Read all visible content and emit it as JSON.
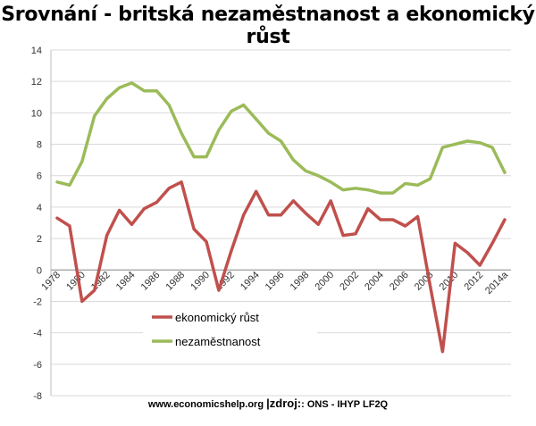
{
  "chart_data": {
    "type": "line",
    "title": "Srovnání - britská nezaměstnanost a ekonomický růst",
    "xlabel": "",
    "ylabel": "",
    "ylim": [
      -8,
      14
    ],
    "yticks": [
      14,
      12,
      10,
      8,
      6,
      4,
      2,
      0,
      -2,
      -4,
      -6,
      -8
    ],
    "x": [
      "1978",
      "1979",
      "1980",
      "1981",
      "1982",
      "1983",
      "1984",
      "1985",
      "1986",
      "1987",
      "1988",
      "1989",
      "1990",
      "1991",
      "1992",
      "1993",
      "1994",
      "1995",
      "1996",
      "1997",
      "1998",
      "1999",
      "2000",
      "2001",
      "2002",
      "2003",
      "2004",
      "2005",
      "2006",
      "2007",
      "2008",
      "2009",
      "2010",
      "2011",
      "2012",
      "2013",
      "2014a"
    ],
    "xtick_labels": [
      "1978",
      "1980",
      "1982",
      "1984",
      "1986",
      "1988",
      "1990",
      "1992",
      "1994",
      "1996",
      "1998",
      "2000",
      "2002",
      "2004",
      "2006",
      "2008",
      "2010",
      "2012",
      "2014a"
    ],
    "grid": true,
    "legend_position": "lower-left",
    "series": [
      {
        "name": "ekonomický růst",
        "color": "#c0504d",
        "values": [
          3.3,
          2.8,
          -2.0,
          -1.3,
          2.2,
          3.8,
          2.9,
          3.9,
          4.3,
          5.2,
          5.6,
          2.6,
          1.8,
          -1.3,
          1.2,
          3.5,
          5.0,
          3.5,
          3.5,
          4.4,
          3.6,
          2.9,
          4.4,
          2.2,
          2.3,
          3.9,
          3.2,
          3.2,
          2.8,
          3.4,
          -1.0,
          -5.2,
          1.7,
          1.1,
          0.3,
          1.7,
          3.2
        ]
      },
      {
        "name": "nezaměstnanost",
        "color": "#9bbb59",
        "values": [
          5.6,
          5.4,
          6.9,
          9.8,
          10.9,
          11.6,
          11.9,
          11.4,
          11.4,
          10.5,
          8.7,
          7.2,
          7.2,
          8.9,
          10.1,
          10.5,
          9.6,
          8.7,
          8.2,
          7.0,
          6.3,
          6.0,
          5.6,
          5.1,
          5.2,
          5.1,
          4.9,
          4.9,
          5.5,
          5.4,
          5.8,
          7.8,
          8.0,
          8.2,
          8.1,
          7.8,
          6.2
        ]
      }
    ]
  },
  "footer": {
    "site": "www.economicshelp.org",
    "source_label": "|zdroj:",
    "source": ": ONS - IHYP LF2Q"
  }
}
